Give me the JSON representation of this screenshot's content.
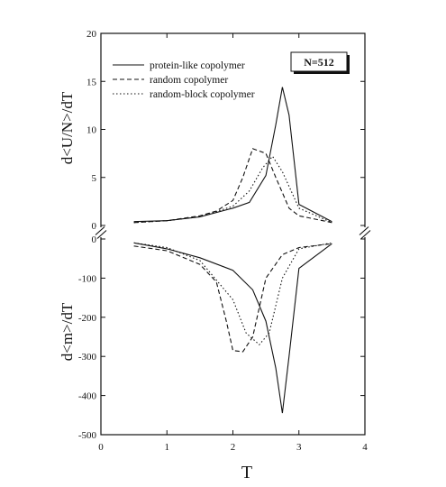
{
  "chart_data": {
    "type": "line",
    "xlabel": "T",
    "xlim": [
      0,
      4
    ],
    "xticks": [
      "0",
      "1",
      "2",
      "3",
      "4"
    ],
    "annotation": "N=512",
    "legend_position": "top-left",
    "panels": [
      {
        "ylabel": "d<U/N>/dT",
        "ylim": [
          0,
          20
        ],
        "yticks": [
          "0",
          "5",
          "10",
          "15",
          "20"
        ],
        "series": [
          {
            "name": "protein-like copolymer",
            "style": "solid",
            "x": [
              0.5,
              1.0,
              1.5,
              2.0,
              2.25,
              2.5,
              2.65,
              2.75,
              2.85,
              3.0,
              3.5
            ],
            "y": [
              0.4,
              0.5,
              0.9,
              1.8,
              2.4,
              5.2,
              10.5,
              14.4,
              11.5,
              2.2,
              0.4
            ]
          },
          {
            "name": "random copolymer",
            "style": "dashed",
            "x": [
              0.5,
              1.0,
              1.5,
              1.75,
              2.0,
              2.15,
              2.3,
              2.5,
              2.65,
              2.85,
              3.0,
              3.5
            ],
            "y": [
              0.3,
              0.5,
              1.0,
              1.5,
              2.6,
              5.0,
              8.0,
              7.5,
              5.0,
              1.8,
              1.0,
              0.3
            ]
          },
          {
            "name": "random-block copolymer",
            "style": "dotted",
            "x": [
              0.5,
              1.0,
              1.5,
              2.0,
              2.25,
              2.45,
              2.6,
              2.75,
              3.0,
              3.5
            ],
            "y": [
              0.3,
              0.5,
              0.9,
              2.0,
              3.6,
              6.0,
              7.2,
              5.6,
              1.8,
              0.3
            ]
          }
        ]
      },
      {
        "ylabel": "d<m>/dT",
        "ylim": [
          -500,
          0
        ],
        "yticks": [
          "-500",
          "-400",
          "-300",
          "-200",
          "-100",
          "0"
        ],
        "series": [
          {
            "name": "protein-like copolymer",
            "style": "solid",
            "x": [
              0.5,
              1.0,
              1.5,
              2.0,
              2.3,
              2.5,
              2.65,
              2.75,
              2.85,
              3.0,
              3.5
            ],
            "y": [
              -10,
              -25,
              -48,
              -80,
              -130,
              -210,
              -330,
              -445,
              -300,
              -75,
              -12
            ]
          },
          {
            "name": "random copolymer",
            "style": "dashed",
            "x": [
              0.5,
              1.0,
              1.5,
              1.75,
              1.9,
              2.0,
              2.15,
              2.3,
              2.5,
              2.75,
              3.0,
              3.5
            ],
            "y": [
              -18,
              -30,
              -65,
              -110,
              -210,
              -285,
              -288,
              -250,
              -100,
              -40,
              -22,
              -12
            ]
          },
          {
            "name": "random-block copolymer",
            "style": "dotted",
            "x": [
              0.5,
              1.0,
              1.5,
              2.0,
              2.2,
              2.4,
              2.55,
              2.75,
              3.0,
              3.5
            ],
            "y": [
              -10,
              -22,
              -55,
              -155,
              -240,
              -270,
              -240,
              -100,
              -25,
              -10
            ]
          }
        ]
      }
    ]
  }
}
